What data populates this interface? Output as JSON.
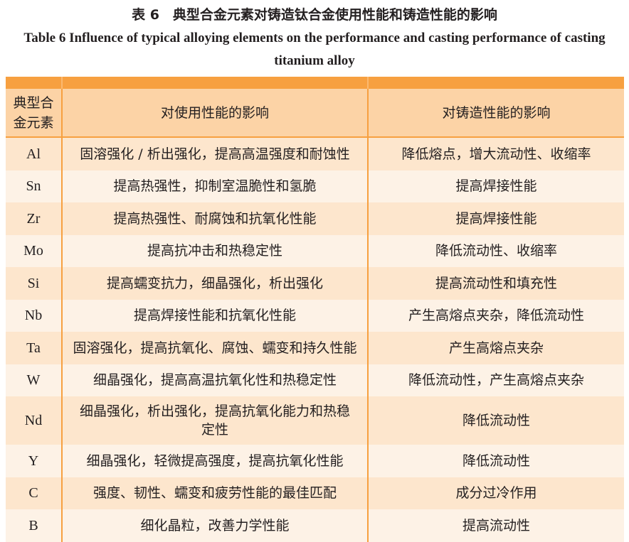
{
  "caption": {
    "cn": "表 6　典型合金元素对铸造钛合金使用性能和铸造性能的影响",
    "en": "Table 6    Influence of typical alloying elements on the performance and casting performance of casting titanium alloy"
  },
  "table": {
    "headers": [
      "典型合\n金元素",
      "对使用性能的影响",
      "对铸造性能的影响"
    ],
    "rows": [
      [
        "Al",
        "固溶强化 / 析出强化，提高高温强度和耐蚀性",
        "降低熔点，增大流动性、收缩率"
      ],
      [
        "Sn",
        "提高热强性，抑制室温脆性和氢脆",
        "提高焊接性能"
      ],
      [
        "Zr",
        "提高热强性、耐腐蚀和抗氧化性能",
        "提高焊接性能"
      ],
      [
        "Mo",
        "提高抗冲击和热稳定性",
        "降低流动性、收缩率"
      ],
      [
        "Si",
        "提高蠕变抗力，细晶强化，析出强化",
        "提高流动性和填充性"
      ],
      [
        "Nb",
        "提高焊接性能和抗氧化性能",
        "产生高熔点夹杂，降低流动性"
      ],
      [
        "Ta",
        "固溶强化，提高抗氧化、腐蚀、蠕变和持久性能",
        "产生高熔点夹杂"
      ],
      [
        "W",
        "细晶强化，提高高温抗氧化性和热稳定性",
        "降低流动性，产生高熔点夹杂"
      ],
      [
        "Nd",
        "细晶强化，析出强化，提高抗氧化能力和热稳定性",
        "降低流动性"
      ],
      [
        "Y",
        "细晶强化，轻微提高强度，提高抗氧化性能",
        "降低流动性"
      ],
      [
        "C",
        "强度、韧性、蠕变和疲劳性能的最佳匹配",
        "成分过冷作用"
      ],
      [
        "B",
        "细化晶粒，改善力学性能",
        "提高流动性"
      ]
    ]
  },
  "colors": {
    "accent": "#f7a040",
    "header_bg": "#fcd3a6",
    "row_dark": "#fde6cd",
    "row_light": "#fdf2e6"
  }
}
